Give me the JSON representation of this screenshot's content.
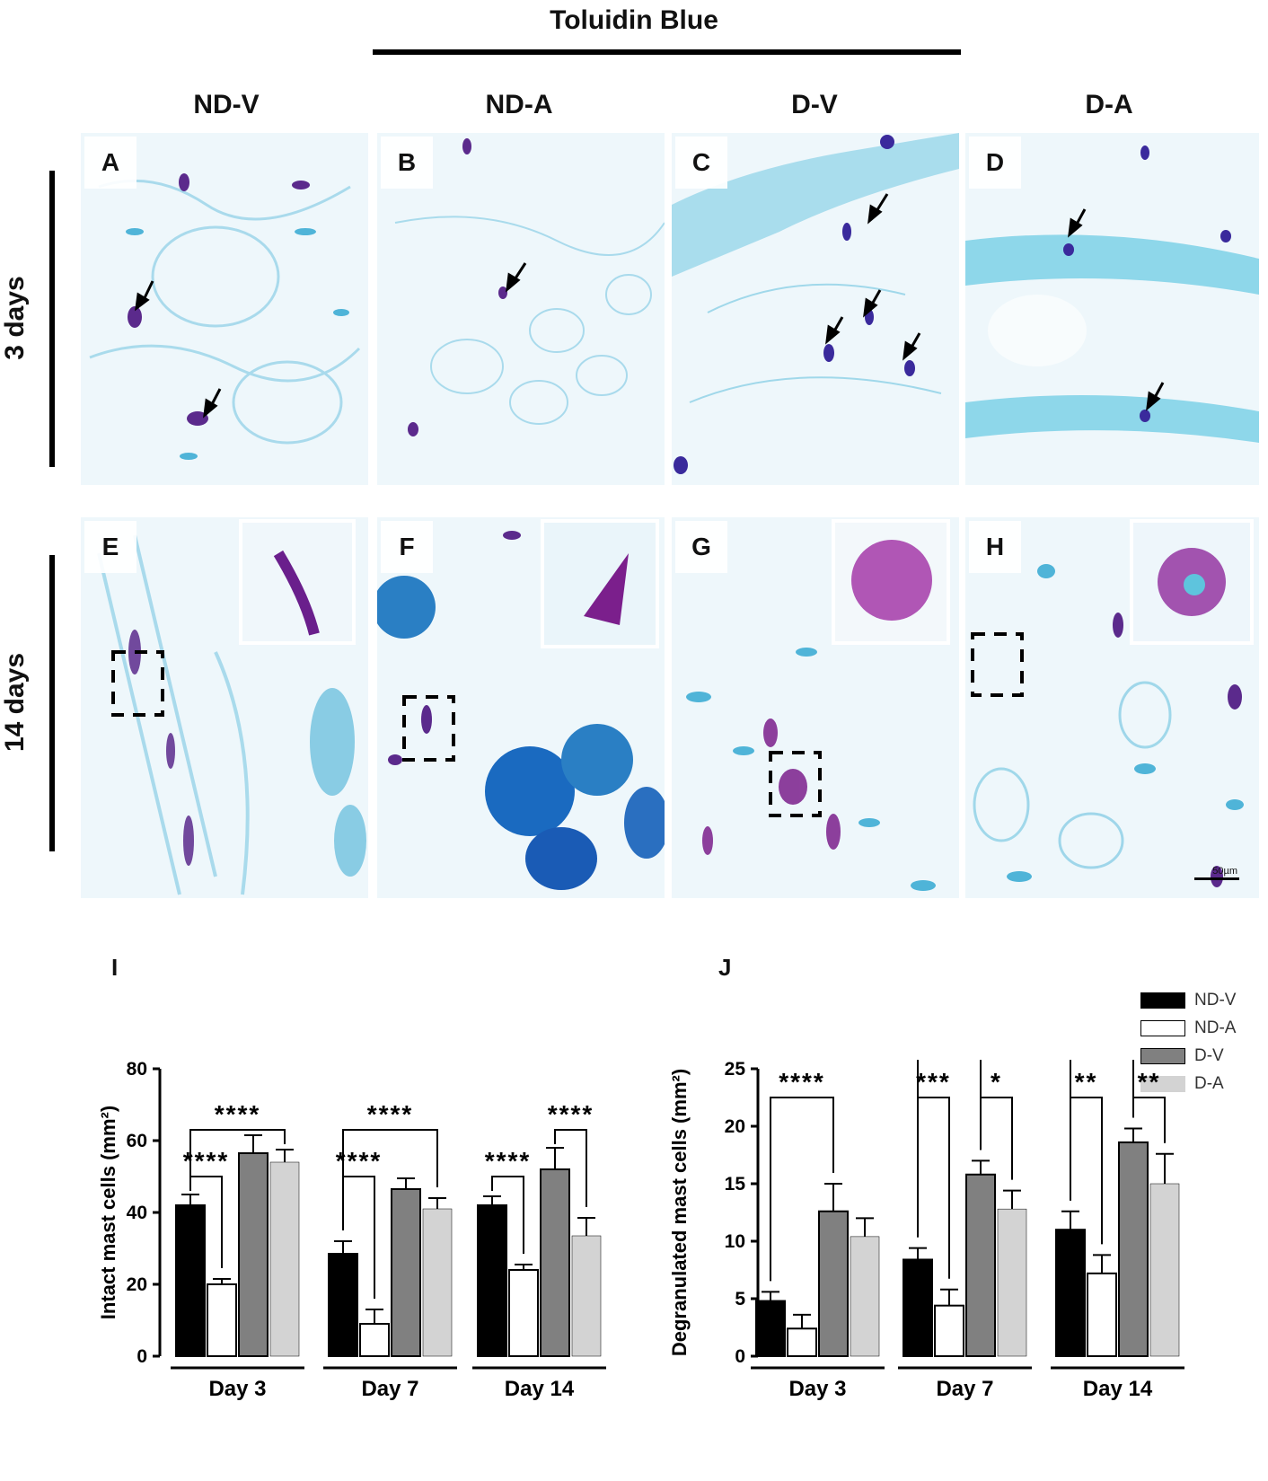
{
  "header": {
    "title": "Toluidin Blue"
  },
  "columns": [
    "ND-V",
    "ND-A",
    "D-V",
    "D-A"
  ],
  "rows": [
    "3 days",
    "14 days"
  ],
  "panels": {
    "letters": [
      "A",
      "B",
      "C",
      "D",
      "E",
      "F",
      "G",
      "H"
    ],
    "scale_label": "50µm"
  },
  "legend": [
    {
      "label": "ND-V",
      "color": "#000000"
    },
    {
      "label": "ND-A",
      "color": "#ffffff"
    },
    {
      "label": "D-V",
      "color": "#808080"
    },
    {
      "label": "D-A",
      "color": "#d3d3d3"
    }
  ],
  "colors": {
    "stain_bg": "#eef7fb",
    "stain_blue": "#4fb4d8",
    "stain_purple": "#6a1f8c"
  },
  "chart_data": [
    {
      "panel": "I",
      "type": "bar",
      "ylabel": "Intact mast cells (mm²)",
      "ylim": [
        0,
        80
      ],
      "yticks": [
        0,
        20,
        40,
        60,
        80
      ],
      "categories": [
        "Day 3",
        "Day 7",
        "Day 14"
      ],
      "series": [
        {
          "name": "ND-V",
          "values": [
            42,
            28.5,
            42
          ],
          "errors": [
            3,
            3.5,
            2.5
          ]
        },
        {
          "name": "ND-A",
          "values": [
            20,
            9,
            24
          ],
          "errors": [
            1.5,
            4,
            1.5
          ]
        },
        {
          "name": "D-V",
          "values": [
            56.5,
            46.5,
            52
          ],
          "errors": [
            5,
            3,
            6
          ]
        },
        {
          "name": "D-A",
          "values": [
            54,
            41,
            33.5
          ],
          "errors": [
            3.5,
            3,
            5
          ]
        }
      ],
      "significance": [
        {
          "group": 0,
          "from": 0,
          "to": 1,
          "label": "****",
          "level": 50
        },
        {
          "group": 0,
          "from": 0,
          "to": 3,
          "label": "****",
          "level": 63
        },
        {
          "group": 1,
          "from": 0,
          "to": 1,
          "label": "****",
          "level": 50
        },
        {
          "group": 1,
          "from": 0,
          "to": 3,
          "label": "****",
          "level": 63
        },
        {
          "group": 2,
          "from": 0,
          "to": 1,
          "label": "****",
          "level": 50
        },
        {
          "group": 2,
          "from": 2,
          "to": 3,
          "label": "****",
          "level": 63
        }
      ]
    },
    {
      "panel": "J",
      "type": "bar",
      "ylabel": "Degranulated mast cells (mm²)",
      "ylim": [
        0,
        25
      ],
      "yticks": [
        0,
        5,
        10,
        15,
        20,
        25
      ],
      "categories": [
        "Day 3",
        "Day 7",
        "Day 14"
      ],
      "series": [
        {
          "name": "ND-V",
          "values": [
            4.8,
            8.4,
            11
          ],
          "errors": [
            0.8,
            1,
            1.6
          ]
        },
        {
          "name": "ND-A",
          "values": [
            2.4,
            4.4,
            7.2
          ],
          "errors": [
            1.2,
            1.4,
            1.6
          ]
        },
        {
          "name": "D-V",
          "values": [
            12.6,
            15.8,
            18.6
          ],
          "errors": [
            2.4,
            1.2,
            1.2
          ]
        },
        {
          "name": "D-A",
          "values": [
            10.4,
            12.8,
            15
          ],
          "errors": [
            1.6,
            1.6,
            2.6
          ]
        }
      ],
      "significance": [
        {
          "group": 0,
          "from": 0,
          "to": 2,
          "label": "****",
          "level": 22.5
        },
        {
          "group": 1,
          "from": 0,
          "to": 1,
          "label": "***",
          "level": 22.5
        },
        {
          "group": 1,
          "from": 2,
          "to": 3,
          "label": "*",
          "level": 22.5
        },
        {
          "group": 1,
          "from": 0,
          "to": 2,
          "label": "****",
          "level": 26.5
        },
        {
          "group": 2,
          "from": 0,
          "to": 1,
          "label": "**",
          "level": 22.5
        },
        {
          "group": 2,
          "from": 2,
          "to": 3,
          "label": "**",
          "level": 22.5
        },
        {
          "group": 2,
          "from": 0,
          "to": 2,
          "label": "****",
          "level": 26.5
        }
      ]
    }
  ]
}
